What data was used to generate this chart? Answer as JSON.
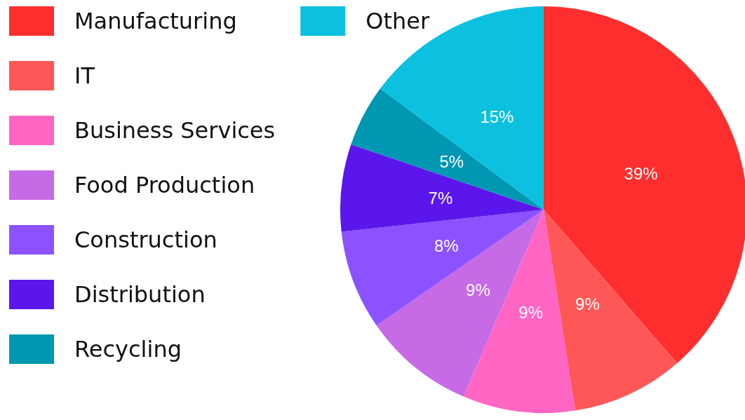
{
  "chart_data": {
    "type": "pie",
    "categories": [
      "Manufacturing",
      "IT",
      "Business Services",
      "Food Production",
      "Construction",
      "Distribution",
      "Recycling",
      "Other"
    ],
    "values": [
      39,
      9,
      9,
      9,
      8,
      7,
      5,
      15
    ],
    "colors": [
      "#ff2e2e",
      "#ff5757",
      "#ff66c4",
      "#c66ae6",
      "#8c52ff",
      "#5b17eb",
      "#0097b2",
      "#0cc0df"
    ],
    "value_labels": [
      "39%",
      "9%",
      "9%",
      "9%",
      "8%",
      "7%",
      "5%",
      "15%"
    ],
    "legend": "left"
  }
}
